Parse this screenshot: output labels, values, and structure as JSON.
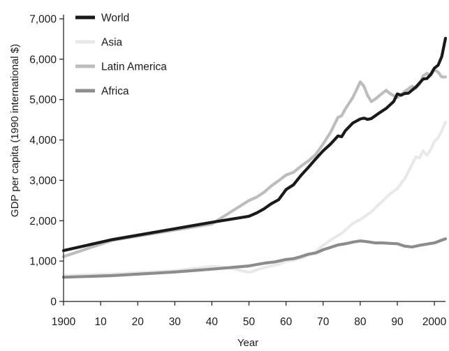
{
  "chart_data": {
    "type": "line",
    "xlabel": "Year",
    "ylabel": "GDP per capita (1990 international $)",
    "xlim": [
      1900,
      2003
    ],
    "ylim": [
      0,
      7000
    ],
    "x_ticks": [
      1900,
      1910,
      1920,
      1930,
      1940,
      1950,
      1960,
      1970,
      1980,
      1990,
      2000
    ],
    "x_tick_labels": [
      "1900",
      "10",
      "20",
      "30",
      "40",
      "50",
      "60",
      "70",
      "80",
      "90",
      "2000"
    ],
    "y_ticks": [
      0,
      1000,
      2000,
      3000,
      4000,
      5000,
      6000,
      7000
    ],
    "y_tick_labels": [
      "0",
      "1,000",
      "2,000",
      "3,000",
      "4,000",
      "5,000",
      "6,000",
      "7,000"
    ],
    "legend_position": "top-left",
    "grid": false,
    "series": [
      {
        "name": "World",
        "color": "#1a1a1a",
        "points": [
          [
            1900,
            1260
          ],
          [
            1913,
            1530
          ],
          [
            1940,
            1960
          ],
          [
            1950,
            2110
          ],
          [
            1952,
            2190
          ],
          [
            1954,
            2290
          ],
          [
            1956,
            2420
          ],
          [
            1958,
            2520
          ],
          [
            1960,
            2770
          ],
          [
            1962,
            2890
          ],
          [
            1964,
            3120
          ],
          [
            1966,
            3320
          ],
          [
            1968,
            3530
          ],
          [
            1970,
            3730
          ],
          [
            1972,
            3900
          ],
          [
            1974,
            4100
          ],
          [
            1975,
            4080
          ],
          [
            1976,
            4230
          ],
          [
            1978,
            4420
          ],
          [
            1980,
            4520
          ],
          [
            1981,
            4540
          ],
          [
            1982,
            4510
          ],
          [
            1983,
            4530
          ],
          [
            1985,
            4660
          ],
          [
            1987,
            4780
          ],
          [
            1989,
            4950
          ],
          [
            1990,
            5140
          ],
          [
            1991,
            5110
          ],
          [
            1992,
            5150
          ],
          [
            1993,
            5160
          ],
          [
            1995,
            5310
          ],
          [
            1997,
            5510
          ],
          [
            1998,
            5520
          ],
          [
            1999,
            5620
          ],
          [
            2000,
            5780
          ],
          [
            2001,
            5850
          ],
          [
            2002,
            6070
          ],
          [
            2003,
            6520
          ]
        ]
      },
      {
        "name": "Asia",
        "color": "#e9e9e9",
        "points": [
          [
            1900,
            640
          ],
          [
            1913,
            680
          ],
          [
            1930,
            760
          ],
          [
            1940,
            870
          ],
          [
            1945,
            830
          ],
          [
            1950,
            720
          ],
          [
            1952,
            780
          ],
          [
            1955,
            860
          ],
          [
            1958,
            920
          ],
          [
            1960,
            1000
          ],
          [
            1962,
            1020
          ],
          [
            1965,
            1100
          ],
          [
            1968,
            1230
          ],
          [
            1970,
            1390
          ],
          [
            1972,
            1520
          ],
          [
            1975,
            1690
          ],
          [
            1978,
            1930
          ],
          [
            1980,
            2030
          ],
          [
            1983,
            2220
          ],
          [
            1985,
            2400
          ],
          [
            1988,
            2660
          ],
          [
            1990,
            2800
          ],
          [
            1992,
            3040
          ],
          [
            1994,
            3400
          ],
          [
            1995,
            3580
          ],
          [
            1996,
            3560
          ],
          [
            1997,
            3730
          ],
          [
            1998,
            3620
          ],
          [
            1999,
            3760
          ],
          [
            2000,
            3970
          ],
          [
            2001,
            4050
          ],
          [
            2002,
            4230
          ],
          [
            2003,
            4440
          ]
        ]
      },
      {
        "name": "Latin America",
        "color": "#bdbdbd",
        "points": [
          [
            1900,
            1110
          ],
          [
            1913,
            1510
          ],
          [
            1940,
            1920
          ],
          [
            1950,
            2500
          ],
          [
            1952,
            2580
          ],
          [
            1954,
            2700
          ],
          [
            1956,
            2860
          ],
          [
            1958,
            2990
          ],
          [
            1960,
            3130
          ],
          [
            1962,
            3200
          ],
          [
            1964,
            3350
          ],
          [
            1966,
            3480
          ],
          [
            1968,
            3640
          ],
          [
            1970,
            3900
          ],
          [
            1972,
            4190
          ],
          [
            1974,
            4560
          ],
          [
            1975,
            4600
          ],
          [
            1976,
            4770
          ],
          [
            1978,
            5050
          ],
          [
            1979,
            5240
          ],
          [
            1980,
            5440
          ],
          [
            1981,
            5330
          ],
          [
            1982,
            5100
          ],
          [
            1983,
            4950
          ],
          [
            1984,
            5010
          ],
          [
            1986,
            5160
          ],
          [
            1987,
            5230
          ],
          [
            1988,
            5150
          ],
          [
            1990,
            5050
          ],
          [
            1991,
            5120
          ],
          [
            1992,
            5200
          ],
          [
            1994,
            5330
          ],
          [
            1995,
            5280
          ],
          [
            1996,
            5380
          ],
          [
            1997,
            5590
          ],
          [
            1998,
            5650
          ],
          [
            1999,
            5600
          ],
          [
            2000,
            5740
          ],
          [
            2001,
            5680
          ],
          [
            2002,
            5560
          ],
          [
            2003,
            5560
          ]
        ]
      },
      {
        "name": "Africa",
        "color": "#8c8c8c",
        "points": [
          [
            1900,
            600
          ],
          [
            1913,
            640
          ],
          [
            1930,
            730
          ],
          [
            1940,
            800
          ],
          [
            1950,
            880
          ],
          [
            1953,
            930
          ],
          [
            1955,
            960
          ],
          [
            1957,
            980
          ],
          [
            1960,
            1040
          ],
          [
            1962,
            1060
          ],
          [
            1964,
            1110
          ],
          [
            1966,
            1170
          ],
          [
            1968,
            1200
          ],
          [
            1970,
            1280
          ],
          [
            1972,
            1340
          ],
          [
            1974,
            1400
          ],
          [
            1976,
            1430
          ],
          [
            1978,
            1470
          ],
          [
            1980,
            1500
          ],
          [
            1982,
            1480
          ],
          [
            1984,
            1450
          ],
          [
            1986,
            1450
          ],
          [
            1988,
            1440
          ],
          [
            1990,
            1430
          ],
          [
            1992,
            1370
          ],
          [
            1994,
            1350
          ],
          [
            1996,
            1390
          ],
          [
            1998,
            1420
          ],
          [
            2000,
            1450
          ],
          [
            2002,
            1520
          ],
          [
            2003,
            1550
          ]
        ]
      }
    ]
  }
}
